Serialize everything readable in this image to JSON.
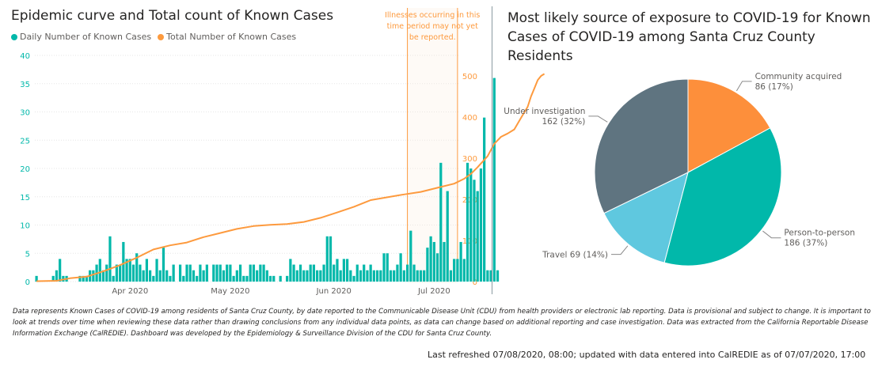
{
  "left_chart": {
    "title": "Epidemic curve and Total count of Known Cases",
    "legend": [
      {
        "label": "Daily Number of Known Cases",
        "color": "#01B8AA"
      },
      {
        "label": "Total Number of Known Cases",
        "color": "#FD9A3E"
      }
    ],
    "annotation": [
      "Illnesses occurring in this",
      "time period may not yet",
      "be reported."
    ]
  },
  "right_chart": {
    "title_line1": "Most likely source of exposure to COVID-19 for Known",
    "title_line2": "Cases of COVID-19 among Santa Cruz County Residents"
  },
  "footnote": "Data represents Known Cases of COVID-19 among residents of Santa Cruz County, by date reported to the Communicable Disease Unit (CDU) from health providers or electronic lab reporting.  Data is provisional and subject to change.  It is important to look at trends over time when reviewing these data rather than drawing conclusions from any individual data points, as data can change based on additional reporting and case investigation.  Data was extracted from the California Reportable Disease Information Exchange (CalREDIE).  Dashboard was developed by the Epidemiology & Surveillance Division of the CDU for Santa Cruz County.",
  "refresh": "Last refreshed 07/08/2020, 08:00; updated with data entered into CalREDIE as of 07/07/2020, 17:00",
  "chart_data": [
    {
      "type": "bar",
      "title": "Epidemic curve and Total count of Known Cases",
      "x_start_date": "2020-03-04",
      "x_end_date": "2020-07-08",
      "x_tick_labels": [
        "Apr 2020",
        "May 2020",
        "Jun 2020",
        "Jul 2020"
      ],
      "shaded_period": [
        "2020-06-23",
        "2020-07-08"
      ],
      "series": [
        {
          "name": "Daily Number of Known Cases",
          "axis": "left",
          "ylim": [
            0,
            40
          ],
          "yticks": [
            0,
            5,
            10,
            15,
            20,
            25,
            30,
            35,
            40
          ],
          "values": [
            1,
            0,
            0,
            0,
            0,
            1,
            2,
            4,
            1,
            1,
            0,
            0,
            0,
            1,
            1,
            1,
            2,
            2,
            3,
            4,
            2,
            3,
            8,
            1,
            3,
            3,
            7,
            4,
            4,
            3,
            5,
            3,
            2,
            4,
            2,
            1,
            4,
            2,
            6,
            2,
            1,
            3,
            0,
            3,
            1,
            3,
            3,
            2,
            1,
            3,
            2,
            3,
            0,
            3,
            3,
            3,
            2,
            3,
            3,
            1,
            2,
            3,
            1,
            1,
            3,
            3,
            2,
            3,
            3,
            2,
            1,
            1,
            0,
            1,
            0,
            1,
            4,
            3,
            2,
            3,
            2,
            2,
            3,
            3,
            2,
            2,
            3,
            8,
            8,
            3,
            4,
            2,
            4,
            4,
            2,
            1,
            3,
            2,
            3,
            2,
            3,
            2,
            2,
            2,
            5,
            5,
            2,
            2,
            3,
            5,
            2,
            3,
            9,
            3,
            2,
            2,
            2,
            6,
            8,
            7,
            5,
            21,
            7,
            16,
            2,
            4,
            4,
            7,
            4,
            21,
            20,
            18,
            16,
            20,
            29,
            2,
            2,
            36,
            2
          ]
        },
        {
          "name": "Total Number of Known Cases",
          "axis": "right",
          "type": "line",
          "ylim": [
            0,
            550
          ],
          "yticks": [
            0,
            100,
            200,
            300,
            400,
            500
          ],
          "points": [
            [
              0,
              1
            ],
            [
              6,
              2
            ],
            [
              10,
              8
            ],
            [
              15,
              12
            ],
            [
              20,
              25
            ],
            [
              25,
              40
            ],
            [
              30,
              58
            ],
            [
              35,
              78
            ],
            [
              40,
              88
            ],
            [
              45,
              95
            ],
            [
              50,
              108
            ],
            [
              55,
              118
            ],
            [
              60,
              128
            ],
            [
              65,
              135
            ],
            [
              70,
              138
            ],
            [
              75,
              140
            ],
            [
              80,
              145
            ],
            [
              85,
              155
            ],
            [
              90,
              168
            ],
            [
              95,
              182
            ],
            [
              100,
              198
            ],
            [
              105,
              205
            ],
            [
              110,
              212
            ],
            [
              115,
              218
            ],
            [
              120,
              228
            ],
            [
              125,
              238
            ],
            [
              128,
              250
            ],
            [
              130,
              262
            ],
            [
              132,
              278
            ],
            [
              135,
              305
            ],
            [
              137,
              335
            ],
            [
              139,
              352
            ],
            [
              141,
              360
            ],
            [
              143,
              370
            ],
            [
              145,
              398
            ],
            [
              147,
              425
            ],
            [
              148,
              450
            ],
            [
              149,
              470
            ],
            [
              150,
              490
            ],
            [
              151,
              500
            ],
            [
              152,
              505
            ]
          ]
        }
      ]
    },
    {
      "type": "pie",
      "title": "Most likely source of exposure to COVID-19 for Known Cases of COVID-19 among Santa Cruz County Residents",
      "slices": [
        {
          "label": "Community acquired",
          "value": 86,
          "percent": "17%",
          "color": "#FD8F3B"
        },
        {
          "label": "Person-to-person",
          "value": 186,
          "percent": "37%",
          "color": "#01B8AA"
        },
        {
          "label": "Travel",
          "value": 69,
          "percent": "14%",
          "color": "#5FC8DF"
        },
        {
          "label": "Under investigation",
          "value": 162,
          "percent": "32%",
          "color": "#5F7480"
        }
      ]
    }
  ]
}
